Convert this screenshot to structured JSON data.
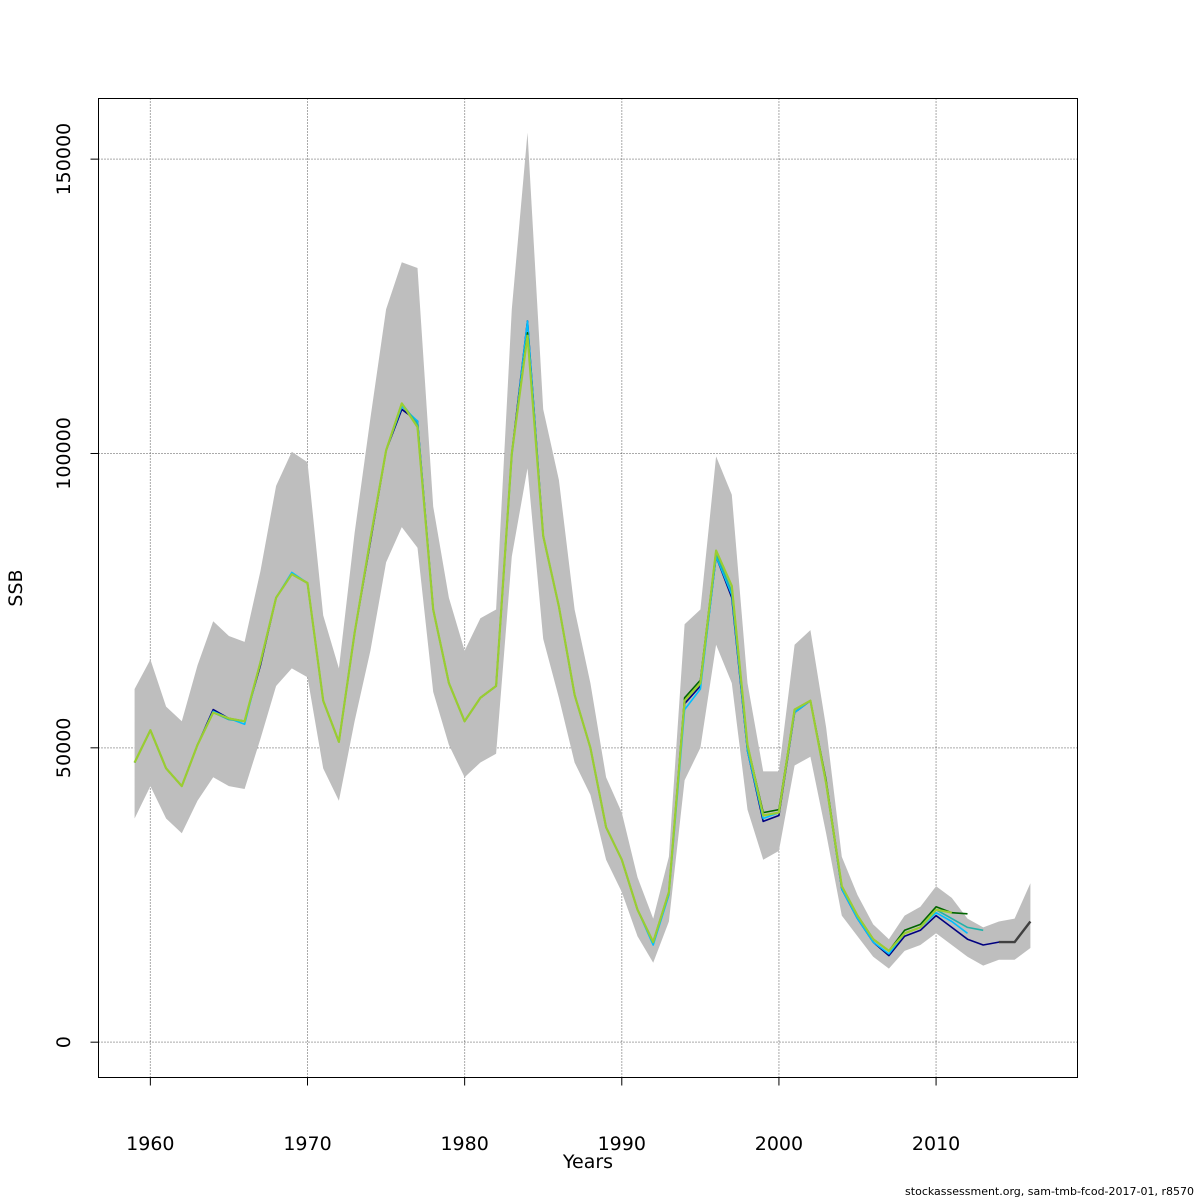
{
  "chart_data": {
    "type": "line",
    "xlabel": "Years",
    "ylabel": "SSB",
    "xlim": [
      1956.7,
      2019
    ],
    "ylim": [
      -6000,
      160300
    ],
    "x_ticks": [
      1960,
      1970,
      1980,
      1990,
      2000,
      2010
    ],
    "y_ticks": [
      0,
      50000,
      100000,
      150000
    ],
    "y_tick_labels": [
      "0",
      "50000",
      "100000",
      "150000"
    ],
    "grid": true,
    "confidence_band": {
      "color": "#bebebe",
      "years": [
        1959,
        1960,
        1961,
        1962,
        1963,
        1964,
        1965,
        1966,
        1967,
        1968,
        1969,
        1970,
        1971,
        1972,
        1973,
        1974,
        1975,
        1976,
        1977,
        1978,
        1979,
        1980,
        1981,
        1982,
        1983,
        1984,
        1985,
        1986,
        1987,
        1988,
        1989,
        1990,
        1991,
        1992,
        1993,
        1994,
        1995,
        1996,
        1997,
        1998,
        1999,
        2000,
        2001,
        2002,
        2003,
        2004,
        2005,
        2006,
        2007,
        2008,
        2009,
        2010,
        2011,
        2012,
        2013,
        2014,
        2015,
        2016
      ],
      "upper": [
        60000,
        65000,
        57000,
        54500,
        64000,
        71500,
        69000,
        68000,
        80000,
        94500,
        100300,
        98500,
        72500,
        63500,
        86500,
        106000,
        124500,
        132500,
        131500,
        91000,
        75500,
        66500,
        72000,
        73500,
        124500,
        154500,
        107500,
        95500,
        73500,
        61000,
        45000,
        39000,
        28000,
        21000,
        31500,
        71000,
        73500,
        99500,
        93000,
        61000,
        46000,
        46000,
        67500,
        70000,
        53500,
        31500,
        25000,
        20000,
        17500,
        21500,
        23000,
        26500,
        24500,
        21000,
        19500,
        20500,
        21000,
        27000
      ],
      "lower": [
        38000,
        43500,
        38000,
        35500,
        41000,
        45000,
        43500,
        43000,
        51500,
        60500,
        63500,
        62000,
        46500,
        41000,
        54500,
        66500,
        81500,
        87500,
        84000,
        59500,
        50500,
        45000,
        47500,
        49000,
        82500,
        97500,
        68500,
        58500,
        47500,
        42000,
        31000,
        25500,
        18000,
        13500,
        20500,
        44500,
        50000,
        67500,
        61000,
        39500,
        31000,
        32500,
        47000,
        48500,
        35500,
        21500,
        18000,
        14500,
        12500,
        15500,
        16500,
        18500,
        16500,
        14500,
        13000,
        14000,
        14000,
        16000
      ]
    },
    "series": [
      {
        "color": "#000080",
        "x": [
          1959,
          1960,
          1961,
          1962,
          1963,
          1964,
          1965,
          1966,
          1967,
          1968,
          1969,
          1970,
          1971,
          1972,
          1973,
          1974,
          1975,
          1976,
          1977,
          1978,
          1979,
          1980,
          1981,
          1982,
          1983,
          1984,
          1985,
          1986,
          1987,
          1988,
          1989,
          1990,
          1991,
          1992,
          1993,
          1994,
          1995,
          1996,
          1997,
          1998,
          1999,
          2000,
          2001,
          2002,
          2003,
          2004,
          2005,
          2006,
          2007,
          2008,
          2009,
          2010,
          2011,
          2012,
          2013,
          2014,
          2015
        ],
        "y": [
          47500,
          53000,
          46500,
          43500,
          50500,
          56500,
          55000,
          54500,
          64000,
          75500,
          79500,
          78000,
          58000,
          51000,
          69500,
          85000,
          100500,
          107500,
          105500,
          73500,
          61000,
          54500,
          58500,
          60500,
          100000,
          122500,
          86000,
          74000,
          59000,
          50000,
          36500,
          31000,
          22500,
          17000,
          25500,
          57500,
          60500,
          82500,
          75500,
          49500,
          37500,
          38500,
          56000,
          58000,
          44000,
          26000,
          21000,
          17000,
          14700,
          18000,
          19000,
          21500,
          19500,
          17500,
          16500,
          17000,
          17000
        ]
      },
      {
        "color": "#00bfff",
        "x": [
          1959,
          1960,
          1961,
          1962,
          1963,
          1964,
          1965,
          1966,
          1967,
          1968,
          1969,
          1970,
          1971,
          1972,
          1973,
          1974,
          1975,
          1976,
          1977,
          1978,
          1979,
          1980,
          1981,
          1982,
          1983,
          1984,
          1985,
          1986,
          1987,
          1988,
          1989,
          1990,
          1991,
          1992,
          1993,
          1994,
          1995,
          1996,
          1997,
          1998,
          1999,
          2000,
          2001,
          2002,
          2003,
          2004,
          2005,
          2006,
          2007,
          2008,
          2009,
          2010,
          2011,
          2012
        ],
        "y": [
          47500,
          53000,
          46500,
          43500,
          50500,
          56200,
          55000,
          54000,
          64500,
          75500,
          79800,
          78000,
          58000,
          51000,
          69500,
          85500,
          100500,
          108000,
          105500,
          73500,
          61000,
          54500,
          58500,
          60500,
          99500,
          122500,
          86000,
          74000,
          59000,
          50000,
          36500,
          31000,
          22500,
          16500,
          25000,
          56500,
          60000,
          82500,
          76000,
          49500,
          38000,
          39000,
          56000,
          58000,
          44000,
          26000,
          21000,
          17000,
          15000,
          18500,
          19500,
          22000,
          20500,
          18500
        ]
      },
      {
        "color": "#20b2aa",
        "x": [
          1959,
          1960,
          1961,
          1962,
          1963,
          1964,
          1965,
          1966,
          1967,
          1968,
          1969,
          1970,
          1971,
          1972,
          1973,
          1974,
          1975,
          1976,
          1977,
          1978,
          1979,
          1980,
          1981,
          1982,
          1983,
          1984,
          1985,
          1986,
          1987,
          1988,
          1989,
          1990,
          1991,
          1992,
          1993,
          1994,
          1995,
          1996,
          1997,
          1998,
          1999,
          2000,
          2001,
          2002,
          2003,
          2004,
          2005,
          2006,
          2007,
          2008,
          2009,
          2010,
          2011,
          2012,
          2013
        ],
        "y": [
          47500,
          53000,
          46500,
          43500,
          50500,
          56000,
          54800,
          54500,
          64500,
          75500,
          79500,
          78000,
          58000,
          51000,
          69500,
          85500,
          100500,
          108500,
          105000,
          73500,
          61000,
          54500,
          58500,
          60500,
          100000,
          120500,
          86000,
          74000,
          59000,
          50000,
          36500,
          31000,
          22500,
          17000,
          25500,
          58000,
          61000,
          83000,
          76500,
          50000,
          38500,
          39000,
          56500,
          58000,
          44000,
          26500,
          21500,
          17500,
          15500,
          18500,
          19500,
          22500,
          21000,
          19500,
          19000
        ]
      },
      {
        "color": "#006400",
        "x": [
          1959,
          1960,
          1961,
          1962,
          1963,
          1964,
          1965,
          1966,
          1967,
          1968,
          1969,
          1970,
          1971,
          1972,
          1973,
          1974,
          1975,
          1976,
          1977,
          1978,
          1979,
          1980,
          1981,
          1982,
          1983,
          1984,
          1985,
          1986,
          1987,
          1988,
          1989,
          1990,
          1991,
          1992,
          1993,
          1994,
          1995,
          1996,
          1997,
          1998,
          1999,
          2000,
          2001,
          2002,
          2003,
          2004,
          2005,
          2006,
          2007,
          2008,
          2009,
          2010,
          2011,
          2012
        ],
        "y": [
          47500,
          53000,
          46500,
          43500,
          50500,
          56000,
          55000,
          54500,
          64500,
          75500,
          79500,
          78000,
          58000,
          51000,
          69500,
          85500,
          100500,
          108500,
          104500,
          73500,
          61000,
          54500,
          58500,
          60500,
          100000,
          120500,
          86000,
          74000,
          59000,
          50000,
          36500,
          31000,
          22500,
          17000,
          25500,
          58500,
          61500,
          83500,
          77500,
          50500,
          39000,
          39500,
          56500,
          58000,
          44500,
          26500,
          21500,
          17500,
          15500,
          19000,
          20000,
          23000,
          22000,
          21800
        ]
      },
      {
        "color": "#9acd32",
        "x": [
          1959,
          1960,
          1961,
          1962,
          1963,
          1964,
          1965,
          1966,
          1967,
          1968,
          1969,
          1970,
          1971,
          1972,
          1973,
          1974,
          1975,
          1976,
          1977,
          1978,
          1979,
          1980,
          1981,
          1982,
          1983,
          1984,
          1985,
          1986,
          1987,
          1988,
          1989,
          1990,
          1991,
          1992,
          1993,
          1994,
          1995,
          1996,
          1997,
          1998,
          1999,
          2000,
          2001,
          2002,
          2003,
          2004,
          2005,
          2006,
          2007,
          2008,
          2009,
          2010,
          2011
        ],
        "y": [
          47500,
          53000,
          46500,
          43500,
          50500,
          56000,
          55000,
          54500,
          64500,
          75500,
          79500,
          78000,
          58000,
          51000,
          69500,
          85500,
          100500,
          108500,
          104500,
          73500,
          61000,
          54500,
          58500,
          60500,
          100000,
          120000,
          86000,
          74000,
          59000,
          50000,
          36500,
          31000,
          22500,
          17000,
          25500,
          58000,
          61000,
          83500,
          77500,
          50500,
          38500,
          39000,
          56500,
          58000,
          44000,
          26500,
          21500,
          17500,
          15500,
          18500,
          19500,
          22500,
          22000
        ]
      },
      {
        "color": "#404040",
        "x": [
          2014,
          2015,
          2016
        ],
        "y": [
          17000,
          17000,
          20500
        ]
      }
    ]
  },
  "footer": {
    "credit": "stockassessment.org, sam-tmb-fcod-2017-01, r8570"
  }
}
